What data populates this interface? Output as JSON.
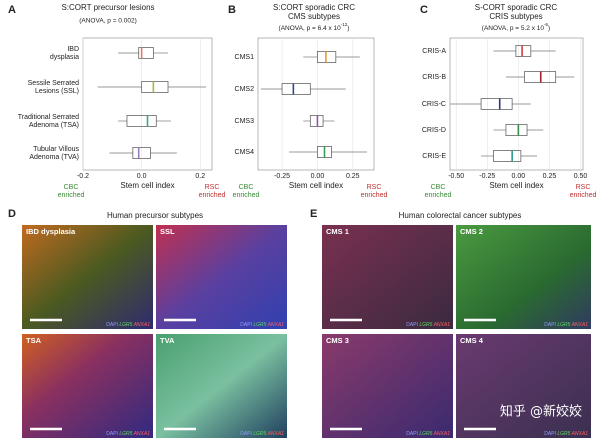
{
  "chart_data": [
    {
      "type": "box",
      "letter": "A",
      "title": "S:CORT precursor lesions",
      "subtitle": [
        "(ANOVA, p = 0.002)"
      ],
      "categories": [
        [
          "IBD",
          "dysplasia"
        ],
        [
          "Sessile Serrated",
          "Lesions (SSL)"
        ],
        [
          "Traditional Serrated",
          "Adenoma (TSA)"
        ],
        [
          "Tubular Villous",
          "Adenoma (TVA)"
        ]
      ],
      "colors": [
        "#e07a6e",
        "#a8b83a",
        "#3aa58a",
        "#9b7cc0"
      ],
      "boxes": [
        {
          "min": -0.08,
          "q1": -0.01,
          "median": 0.0,
          "q3": 0.04,
          "max": 0.09
        },
        {
          "min": -0.15,
          "q1": 0.0,
          "median": 0.04,
          "q3": 0.09,
          "max": 0.22
        },
        {
          "min": -0.08,
          "q1": -0.05,
          "median": 0.02,
          "q3": 0.05,
          "max": 0.1
        },
        {
          "min": -0.11,
          "q1": -0.03,
          "median": -0.01,
          "q3": 0.03,
          "max": 0.12
        }
      ],
      "xlim": [
        -0.2,
        0.24
      ],
      "xticks": [
        -0.2,
        {
          "value": 0,
          "label": "0.0"
        },
        0.2
      ],
      "grid": true,
      "xlabel": "Stem cell index",
      "left_note": [
        "CBC",
        "enriched"
      ],
      "right_note": [
        "RSC",
        "enriched"
      ]
    },
    {
      "type": "box",
      "letter": "B",
      "title": "S:CORT sporadic CRC",
      "subtitle": [
        "CMS subtypes",
        "(ANOVA, p = 6.4 x 10",
        "-12",
        ")"
      ],
      "categories": [
        [
          "CMS1"
        ],
        [
          "CMS2"
        ],
        [
          "CMS3"
        ],
        [
          "CMS4"
        ]
      ],
      "colors": [
        "#e0a030",
        "#2c4a8a",
        "#8a5aa8",
        "#3a9a5a"
      ],
      "boxes": [
        {
          "min": -0.1,
          "q1": 0.0,
          "median": 0.06,
          "q3": 0.13,
          "max": 0.3
        },
        {
          "min": -0.4,
          "q1": -0.25,
          "median": -0.17,
          "q3": -0.05,
          "max": 0.2
        },
        {
          "min": -0.1,
          "q1": -0.05,
          "median": 0.0,
          "q3": 0.04,
          "max": 0.12
        },
        {
          "min": -0.2,
          "q1": 0.0,
          "median": 0.05,
          "q3": 0.1,
          "max": 0.35
        }
      ],
      "xlim": [
        -0.42,
        0.4
      ],
      "xticks": [
        -0.25,
        {
          "value": 0,
          "label": "0.00"
        },
        0.25
      ],
      "grid": true,
      "xlabel": "Stem cell index",
      "left_note": [
        "CBC",
        "enriched"
      ],
      "right_note": [
        "RSC",
        "enriched"
      ]
    },
    {
      "type": "box",
      "letter": "C",
      "title": "S-CORT sporadic CRC",
      "subtitle": [
        "CRIS subtypes",
        "(ANOVA, p = 5.2 x 10",
        "-6",
        ")"
      ],
      "categories": [
        [
          "CRIS-A"
        ],
        [
          "CRIS-B"
        ],
        [
          "CRIS-C"
        ],
        [
          "CRIS-D"
        ],
        [
          "CRIS-E"
        ]
      ],
      "colors": [
        "#d04040",
        "#a02030",
        "#2c3a7a",
        "#3a8a4a",
        "#2a9a8a"
      ],
      "boxes": [
        {
          "min": -0.2,
          "q1": -0.02,
          "median": 0.03,
          "q3": 0.1,
          "max": 0.3
        },
        {
          "min": -0.1,
          "q1": 0.05,
          "median": 0.18,
          "q3": 0.3,
          "max": 0.45
        },
        {
          "min": -0.55,
          "q1": -0.3,
          "median": -0.15,
          "q3": -0.05,
          "max": 0.1
        },
        {
          "min": -0.2,
          "q1": -0.1,
          "median": 0.0,
          "q3": 0.07,
          "max": 0.2
        },
        {
          "min": -0.3,
          "q1": -0.2,
          "median": -0.05,
          "q3": 0.02,
          "max": 0.15
        }
      ],
      "xlim": [
        -0.55,
        0.52
      ],
      "xticks": [
        {
          "value": -0.5,
          "label": "-0.50"
        },
        -0.25,
        {
          "value": 0,
          "label": "0.00"
        },
        0.25,
        {
          "value": 0.5,
          "label": "0.50"
        }
      ],
      "grid": true,
      "xlabel": "Stem cell index",
      "left_note": [
        "CBC",
        "enriched"
      ],
      "right_note": [
        "RSC",
        "enriched"
      ]
    }
  ],
  "panels": [
    {
      "letter": "D",
      "title": "Human precursor subtypes",
      "images": [
        "IBD dysplasia",
        "SSL",
        "TSA",
        "TVA"
      ]
    },
    {
      "letter": "E",
      "title": "Human colorectal cancer subtypes",
      "images": [
        "CMS 1",
        "CMS 2",
        "CMS 3",
        "CMS 4"
      ]
    }
  ],
  "stain": [
    "DAPI",
    "LGR5",
    "ANXA1"
  ],
  "watermark": "知乎 @新姣姣"
}
